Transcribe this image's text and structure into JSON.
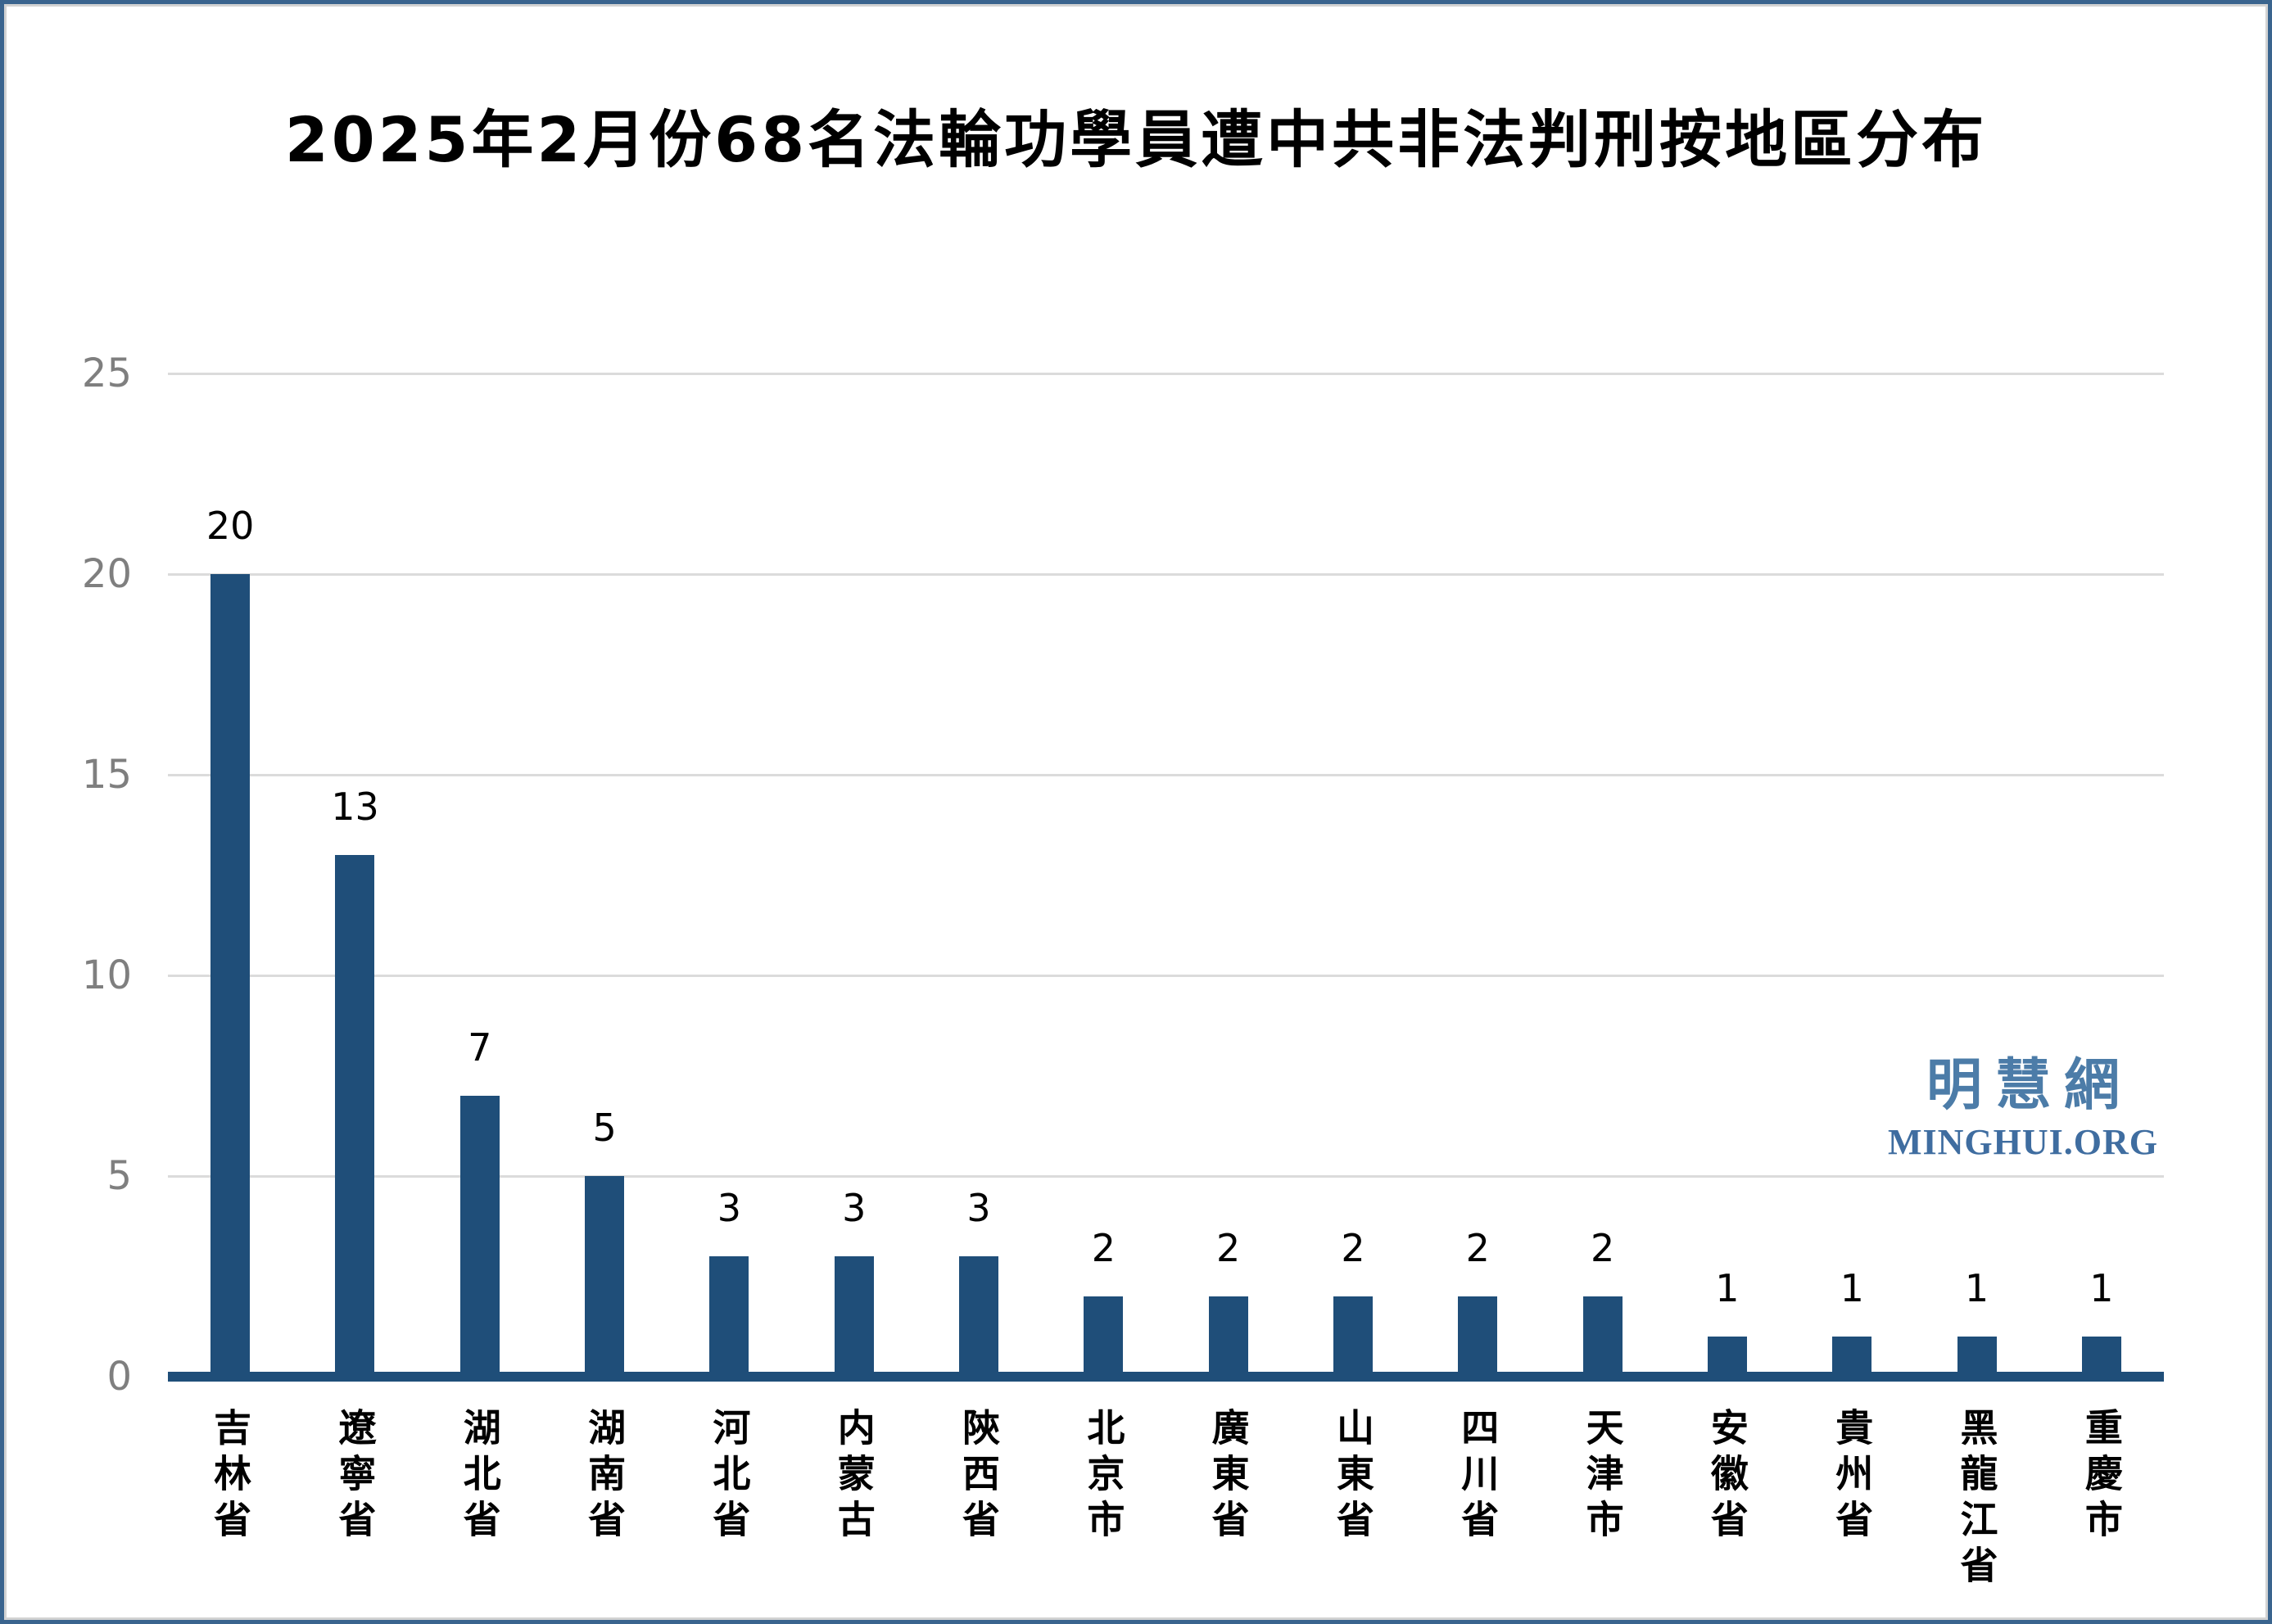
{
  "title": "2025年2月份68名法輪功學員遭中共非法判刑按地區分布",
  "watermark": {
    "chinese": "明慧網",
    "latin": "MINGHUI.ORG"
  },
  "colors": {
    "bar": "#1F4E79",
    "axis_line": "#1F4E79",
    "gridline": "#DBDBDB",
    "tick_label": "#7F7F7F",
    "value_label": "#000000",
    "watermark_chinese": "#4C7CA8",
    "watermark_latin": "#3F6DA0",
    "frame_border": "#3A648E"
  },
  "chart_data": {
    "type": "bar",
    "title": "2025年2月份68名法輪功學員遭中共非法判刑按地區分布",
    "categories": [
      "吉林省",
      "遼寧省",
      "湖北省",
      "湖南省",
      "河北省",
      "内蒙古",
      "陝西省",
      "北京市",
      "廣東省",
      "山東省",
      "四川省",
      "天津市",
      "安徽省",
      "貴州省",
      "黑龍江省",
      "重慶市"
    ],
    "values": [
      20,
      13,
      7,
      5,
      3,
      3,
      3,
      2,
      2,
      2,
      2,
      2,
      1,
      1,
      1,
      1
    ],
    "xlabel": "",
    "ylabel": "",
    "ylim": [
      0,
      25
    ],
    "yticks": [
      0,
      5,
      10,
      15,
      20,
      25
    ],
    "grid": true,
    "legend": false,
    "data_labels": true,
    "bar_color": "#1F4E79"
  }
}
